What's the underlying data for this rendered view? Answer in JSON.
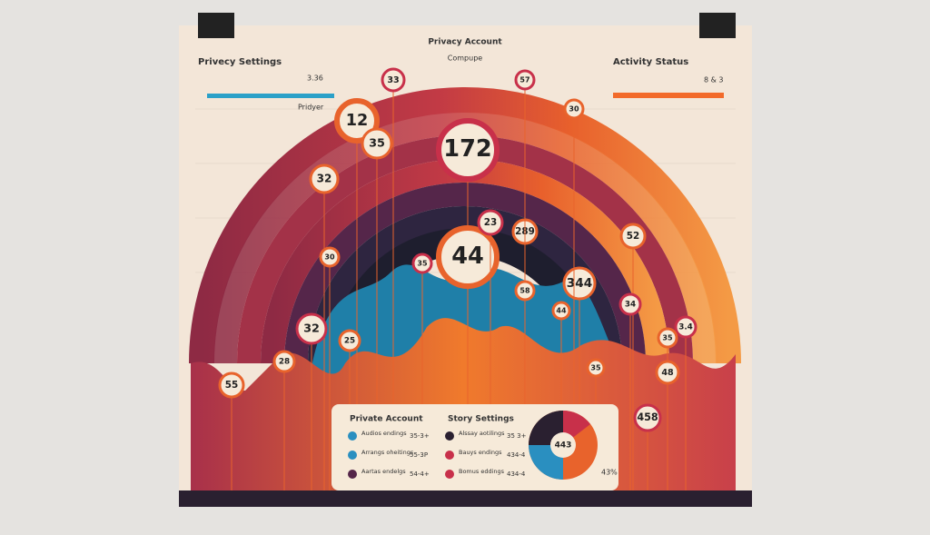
{
  "header": {
    "left_title": "Privecy Settings",
    "left_value": "3.36",
    "left_label": "Pridyer",
    "center_title": "Privacy Account",
    "center_sub": "Compupe",
    "right_title": "Activity Status",
    "right_value": "8 & 3"
  },
  "bubbles": [
    33,
    12,
    35,
    172,
    44,
    32,
    23,
    289,
    344,
    57,
    30,
    52,
    3.4,
    35,
    48,
    458,
    55,
    28,
    32,
    25,
    30,
    35,
    58,
    44,
    34,
    35
  ],
  "panel": {
    "left_title": "Private Account",
    "right_title": "Story Settings",
    "left_items": [
      {
        "label": "Audios endings",
        "value": "35-3+"
      },
      {
        "label": "Arrangs oheitings",
        "value": "55-3P"
      },
      {
        "label": "Aartas endelgs",
        "value": "54-4+"
      }
    ],
    "right_items": [
      {
        "label": "Alssay aotilings",
        "value": "35 3+"
      },
      {
        "label": "Bauys endings",
        "value": "434-4"
      },
      {
        "label": "Bomus eddings",
        "value": "434-4"
      }
    ],
    "donut_center": "443",
    "donut_pct": "43%"
  }
}
